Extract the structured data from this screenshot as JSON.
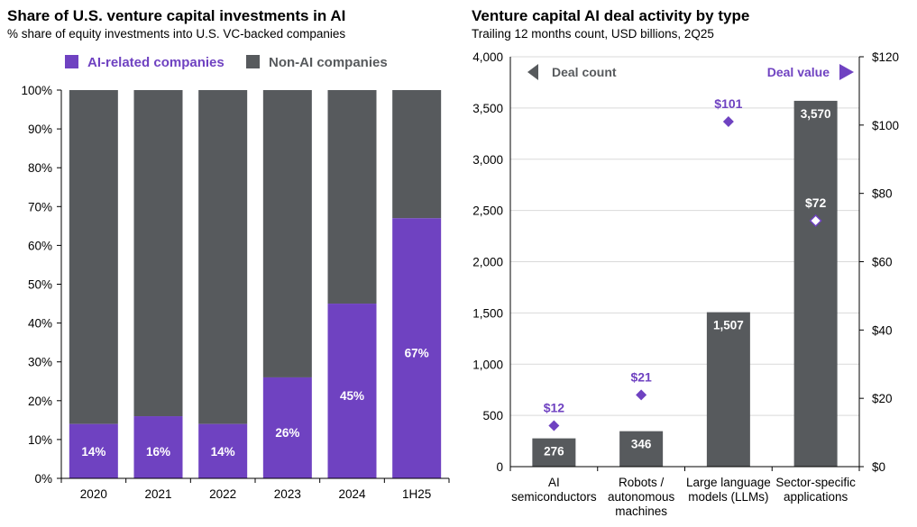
{
  "colors": {
    "ai": "#6f42c1",
    "non_ai": "#575a5d",
    "grid": "#d9d9d9"
  },
  "chart_data": [
    {
      "type": "bar",
      "stacked": true,
      "title": "Share of U.S. venture capital investments in AI",
      "subtitle": "% share of equity investments into U.S. VC-backed companies",
      "categories": [
        "2020",
        "2021",
        "2022",
        "2023",
        "2024",
        "1H25"
      ],
      "series": [
        {
          "name": "AI-related companies",
          "values": [
            14,
            16,
            14,
            26,
            45,
            67
          ],
          "labels": [
            "14%",
            "16%",
            "14%",
            "26%",
            "45%",
            "67%"
          ]
        },
        {
          "name": "Non-AI companies",
          "values": [
            86,
            84,
            86,
            74,
            55,
            33
          ]
        }
      ],
      "ylim": [
        0,
        100
      ],
      "yticks": [
        "0%",
        "10%",
        "20%",
        "30%",
        "40%",
        "50%",
        "60%",
        "70%",
        "80%",
        "90%",
        "100%"
      ],
      "legend": "top",
      "grid": false
    },
    {
      "type": "bar",
      "title": "Venture capital AI deal activity by type",
      "subtitle": "Trailing 12 months count, USD billions, 2Q25",
      "categories": [
        [
          "AI",
          "semiconductors"
        ],
        [
          "Robots /",
          "autonomous",
          "machines"
        ],
        [
          "Large language",
          "models (LLMs)"
        ],
        [
          "Sector-specific",
          "applications"
        ]
      ],
      "series": [
        {
          "name": "Deal count",
          "axis": "left",
          "type": "bar",
          "values": [
            276,
            346,
            1507,
            3570
          ],
          "labels": [
            "276",
            "346",
            "1,507",
            "3,570"
          ]
        },
        {
          "name": "Deal value",
          "axis": "right",
          "type": "scatter",
          "values": [
            12,
            21,
            101,
            72
          ],
          "labels": [
            "$12",
            "$21",
            "$101",
            "$72"
          ]
        }
      ],
      "ylim_left": [
        0,
        4000
      ],
      "ylim_right": [
        0,
        120
      ],
      "yticks_left": [
        "0",
        "500",
        "1,000",
        "1,500",
        "2,000",
        "2,500",
        "3,000",
        "3,500",
        "4,000"
      ],
      "yticks_right": [
        "$0",
        "$20",
        "$40",
        "$60",
        "$80",
        "$100",
        "$120"
      ],
      "legend": "top",
      "grid": true
    }
  ]
}
